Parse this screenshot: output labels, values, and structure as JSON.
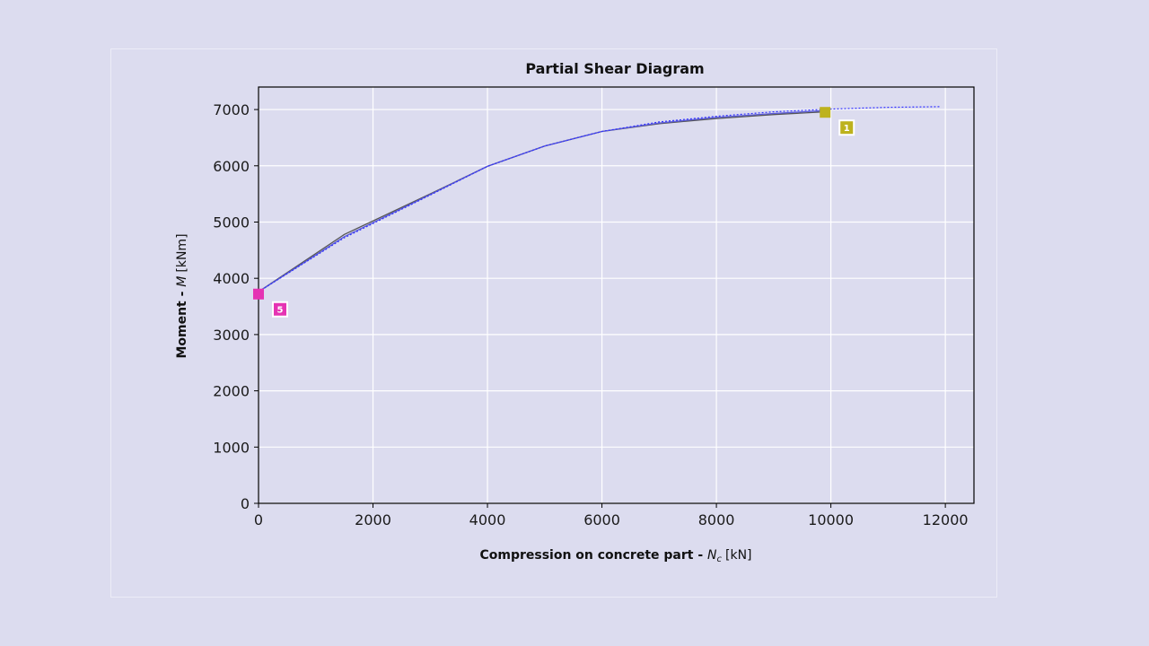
{
  "chart_data": {
    "type": "line",
    "title": "Partial Shear Diagram",
    "xlabel": {
      "prefix": "Compression on concrete part - ",
      "symbol": "N",
      "subscript": "c",
      "unit": "[kN]"
    },
    "ylabel": {
      "prefix": "Moment - ",
      "symbol": "M",
      "unit": "[kNm]"
    },
    "xlim": [
      0,
      12500
    ],
    "ylim": [
      0,
      7400
    ],
    "xticks": [
      0,
      2000,
      4000,
      6000,
      8000,
      10000,
      12000
    ],
    "yticks": [
      0,
      1000,
      2000,
      3000,
      4000,
      5000,
      6000,
      7000
    ],
    "grid": true,
    "series": [
      {
        "style": "solid",
        "color": "#555555",
        "x": [
          0,
          1500,
          3000,
          4000,
          5000,
          6000,
          7000,
          8000,
          9000,
          9900
        ],
        "y": [
          3760,
          4780,
          5500,
          5990,
          6350,
          6610,
          6750,
          6840,
          6910,
          6960
        ]
      },
      {
        "style": "solid",
        "color": "#5b5bd6",
        "x": [
          0,
          1500,
          3000,
          4000,
          5000,
          6000,
          7000,
          8000,
          9000,
          9900
        ],
        "y": [
          3760,
          4740,
          5490,
          5990,
          6350,
          6610,
          6760,
          6860,
          6930,
          6980
        ]
      },
      {
        "style": "dotted",
        "color": "#3333ff",
        "x": [
          0,
          1500,
          3000,
          4000,
          5000,
          6000,
          7000,
          8000,
          9000,
          10000,
          11000,
          11900
        ],
        "y": [
          3760,
          4720,
          5480,
          5990,
          6350,
          6610,
          6780,
          6880,
          6960,
          7010,
          7040,
          7050
        ]
      }
    ],
    "points": [
      {
        "label": "1",
        "x": 9900,
        "y": 6950,
        "color": "#bdb21d"
      },
      {
        "label": "5",
        "x": 0,
        "y": 3720,
        "color": "#e533b3"
      }
    ]
  }
}
